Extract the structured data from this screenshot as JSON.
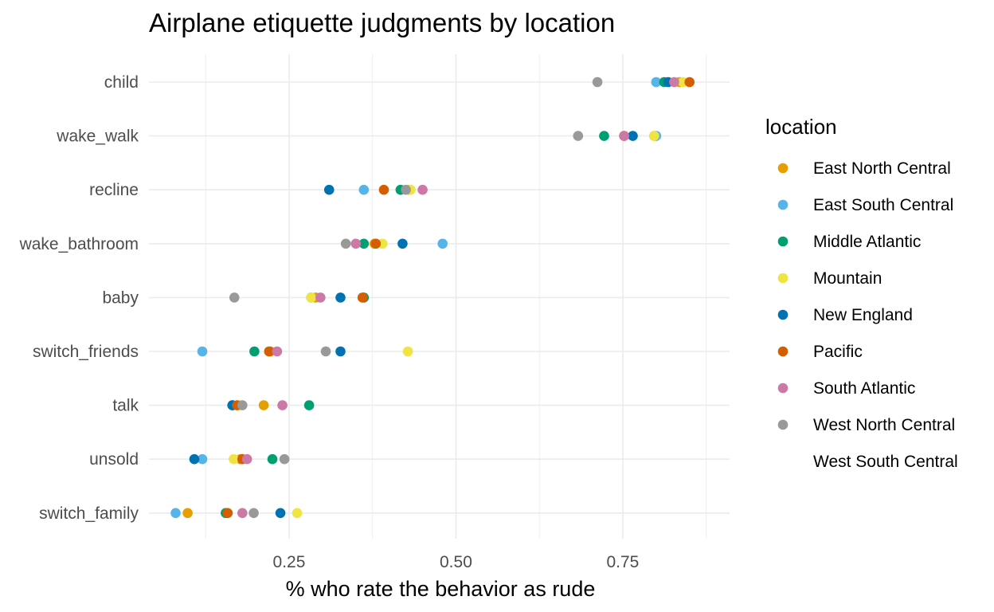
{
  "chart_data": {
    "type": "scatter",
    "title": "Airplane etiquette judgments by location",
    "xlabel": "% who rate the behavior as rude",
    "ylabel": "",
    "xlim": [
      0.04,
      0.91
    ],
    "x_ticks": [
      0.25,
      0.5,
      0.75
    ],
    "x_tick_labels": [
      "0.25",
      "0.50",
      "0.75"
    ],
    "grid": true,
    "legend_position": "right",
    "legend_title": "location",
    "categories": [
      "child",
      "wake_walk",
      "recline",
      "wake_bathroom",
      "baby",
      "switch_friends",
      "talk",
      "unsold",
      "switch_family"
    ],
    "series": [
      {
        "name": "East North Central",
        "color": "#E69F00",
        "values": [
          0.835,
          0.797,
          0.43,
          0.378,
          0.29,
          0.222,
          0.212,
          0.177,
          0.098
        ]
      },
      {
        "name": "East South Central",
        "color": "#56B4E9",
        "values": [
          0.8,
          0.8,
          0.362,
          0.48,
          0.283,
          0.12,
          0.165,
          0.12,
          0.08
        ]
      },
      {
        "name": "Middle Atlantic",
        "color": "#009E73",
        "values": [
          0.812,
          0.722,
          0.417,
          0.362,
          0.362,
          0.198,
          0.28,
          0.225,
          0.155
        ]
      },
      {
        "name": "Mountain",
        "color": "#F0E442",
        "values": [
          0.84,
          0.797,
          0.432,
          0.39,
          0.283,
          0.428,
          0.175,
          0.167,
          0.262
        ]
      },
      {
        "name": "New England",
        "color": "#0072B2",
        "values": [
          0.818,
          0.765,
          0.31,
          0.42,
          0.327,
          0.327,
          0.165,
          0.108,
          0.237
        ]
      },
      {
        "name": "Pacific",
        "color": "#D55E00",
        "values": [
          0.85,
          0.752,
          0.392,
          0.38,
          0.36,
          0.22,
          0.172,
          0.18,
          0.158
        ]
      },
      {
        "name": "South Atlantic",
        "color": "#CC79A7",
        "values": [
          0.827,
          0.752,
          0.45,
          0.35,
          0.297,
          0.232,
          0.24,
          0.187,
          0.18
        ]
      },
      {
        "name": "West North Central",
        "color": "#999999",
        "values": [
          0.712,
          0.683,
          0.425,
          0.335,
          0.168,
          0.305,
          0.18,
          0.243,
          0.197
        ]
      },
      {
        "name": "West South Central",
        "color": "#000000",
        "values": [
          null,
          null,
          null,
          null,
          null,
          null,
          null,
          null,
          null
        ]
      }
    ]
  }
}
